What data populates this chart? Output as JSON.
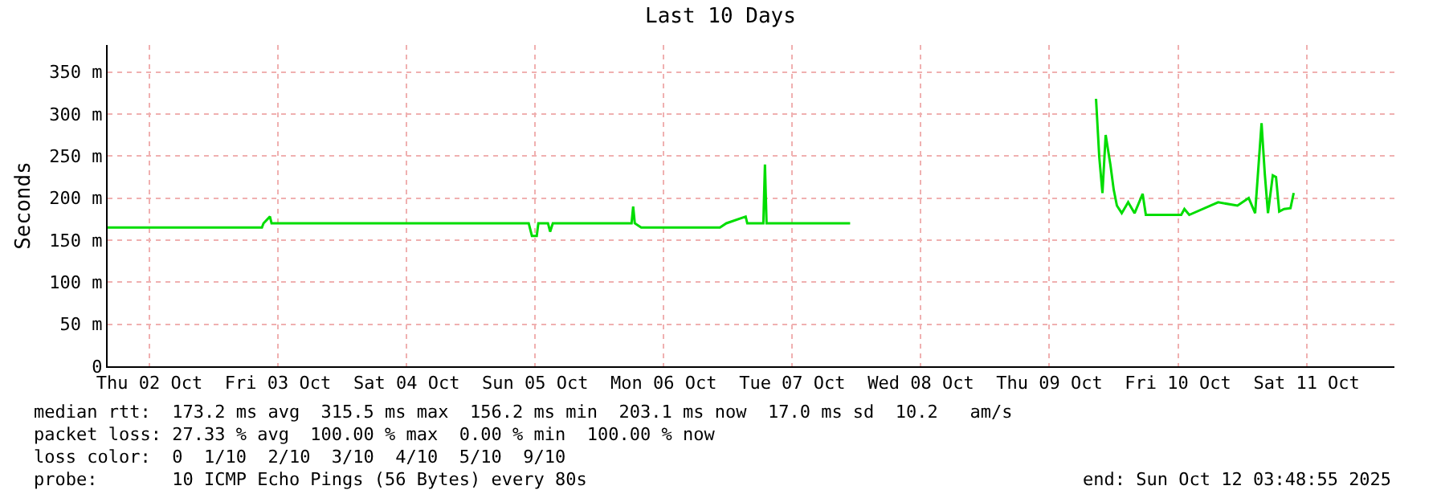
{
  "chart_data": {
    "type": "line",
    "title": "Last 10 Days",
    "ylabel": "Seconds",
    "x": [
      "2025-10-02T04:12",
      "2025-10-03T09:00",
      "2025-10-03T09:18",
      "2025-10-03T10:30",
      "2025-10-03T10:48",
      "2025-10-05T10:48",
      "2025-10-05T11:24",
      "2025-10-05T12:18",
      "2025-10-05T12:36",
      "2025-10-05T14:24",
      "2025-10-05T14:48",
      "2025-10-05T15:18",
      "2025-10-06T06:00",
      "2025-10-06T06:18",
      "2025-10-06T06:36",
      "2025-10-06T07:48",
      "2025-10-06T22:30",
      "2025-10-06T23:42",
      "2025-10-07T03:18",
      "2025-10-07T03:36",
      "2025-10-07T06:36",
      "2025-10-07T06:54",
      "2025-10-07T07:12",
      "2025-10-07T22:48",
      "2025-10-08T12:00",
      "2025-10-09T20:42",
      "2025-10-09T21:18",
      "2025-10-09T21:54",
      "2025-10-09T22:30",
      "2025-10-09T23:24",
      "2025-10-10T00:00",
      "2025-10-10T00:36",
      "2025-10-10T01:30",
      "2025-10-10T02:42",
      "2025-10-10T03:54",
      "2025-10-10T05:24",
      "2025-10-10T06:00",
      "2025-10-10T12:36",
      "2025-10-10T13:12",
      "2025-10-10T14:06",
      "2025-10-10T19:30",
      "2025-10-10T23:06",
      "2025-10-11T01:12",
      "2025-10-11T02:24",
      "2025-10-11T03:36",
      "2025-10-11T04:12",
      "2025-10-11T04:48",
      "2025-10-11T05:42",
      "2025-10-11T06:18",
      "2025-10-11T06:54",
      "2025-10-11T07:48",
      "2025-10-11T09:00",
      "2025-10-11T09:36"
    ],
    "series": [
      {
        "color": "#00dd00",
        "values": [
          165,
          165,
          170,
          178,
          170,
          170,
          155,
          155,
          170,
          170,
          160,
          170,
          170,
          190,
          170,
          165,
          165,
          170,
          178,
          170,
          170,
          240,
          170,
          170,
          null,
          318,
          249,
          206,
          275,
          239,
          210,
          191,
          182,
          195,
          182,
          205,
          180,
          180,
          187,
          180,
          195,
          191,
          200,
          182,
          289,
          229,
          182,
          227,
          225,
          184,
          187,
          188,
          206
        ]
      }
    ],
    "xlim": [
      "2025-10-02T04:12",
      "2025-10-12T04:24"
    ],
    "xticks": [
      {
        "value": "2025-10-02T12:00",
        "label": "Thu 02 Oct"
      },
      {
        "value": "2025-10-03T12:00",
        "label": "Fri 03 Oct"
      },
      {
        "value": "2025-10-04T12:00",
        "label": "Sat 04 Oct"
      },
      {
        "value": "2025-10-05T12:00",
        "label": "Sun 05 Oct"
      },
      {
        "value": "2025-10-06T12:00",
        "label": "Mon 06 Oct"
      },
      {
        "value": "2025-10-07T12:00",
        "label": "Tue 07 Oct"
      },
      {
        "value": "2025-10-08T12:00",
        "label": "Wed 08 Oct"
      },
      {
        "value": "2025-10-09T12:00",
        "label": "Thu 09 Oct"
      },
      {
        "value": "2025-10-10T12:00",
        "label": "Fri 10 Oct"
      },
      {
        "value": "2025-10-11T12:00",
        "label": "Sat 11 Oct"
      }
    ],
    "ylim": [
      0,
      382
    ],
    "yticks": [
      0,
      {
        "value": 50,
        "label": "50 m"
      },
      {
        "value": 100,
        "label": "100 m"
      },
      {
        "value": 150,
        "label": "150 m"
      },
      {
        "value": 200,
        "label": "200 m"
      },
      {
        "value": 250,
        "label": "250 m"
      },
      {
        "value": 300,
        "label": "300 m"
      },
      {
        "value": 350,
        "label": "350 m"
      }
    ],
    "grid": true,
    "marker": "none",
    "line_style": "solid",
    "annotations": [
      "median rtt:  173.2 ms avg  315.5 ms max  156.2 ms min  203.1 ms now  17.0 ms sd  10.2   am/s",
      "packet loss: 27.33 % avg  100.00 % max  0.00 % min  100.00 % now",
      "loss color:  0  1/10  2/10  3/10  4/10  5/10  9/10",
      "probe:       10 ICMP Echo Pings (56 Bytes) every 80s",
      "end: Sun Oct 12 03:48:55 2025"
    ]
  }
}
